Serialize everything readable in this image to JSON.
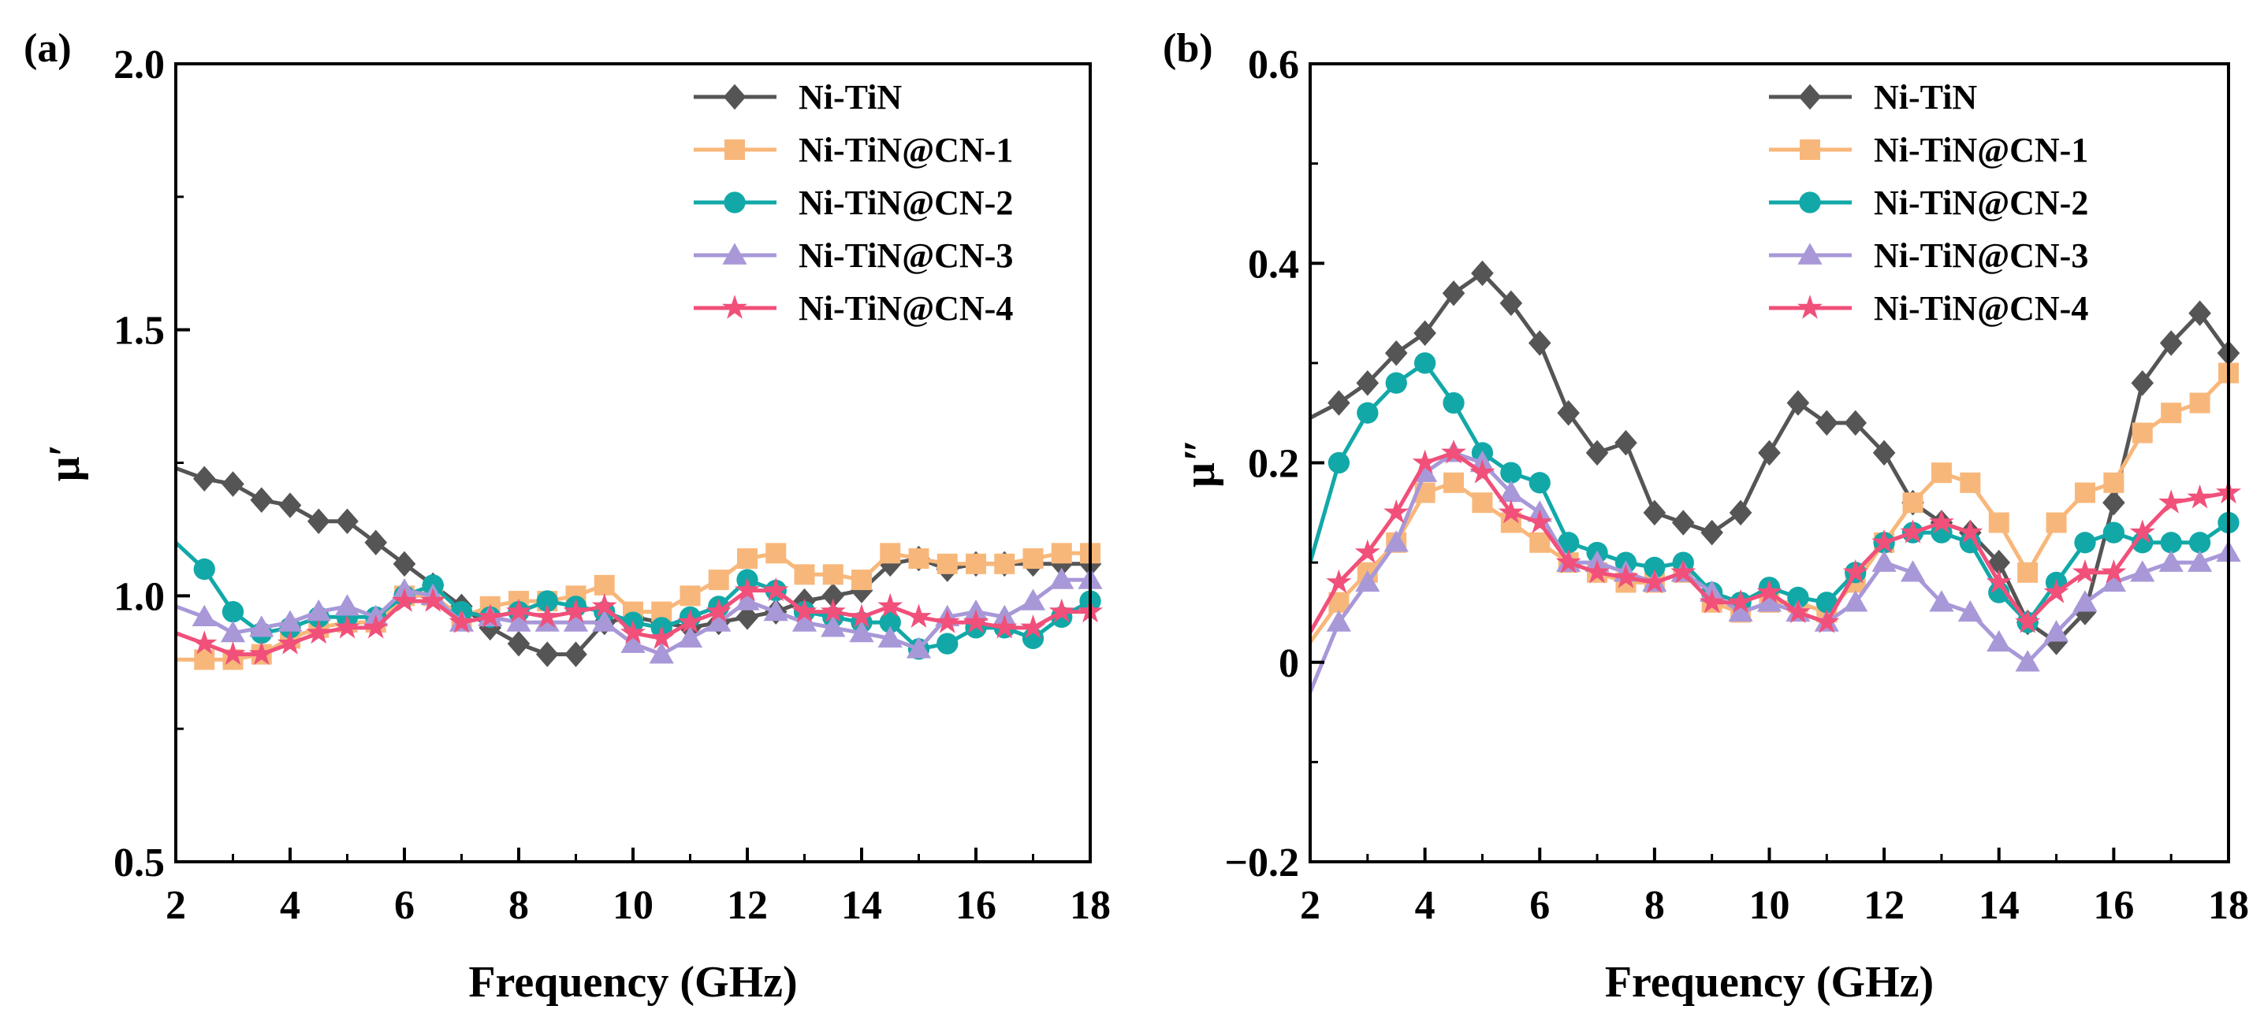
{
  "chart_data": [
    {
      "type": "line",
      "panel_label": "(a)",
      "xlabel": "Frequency (GHz)",
      "ylabel": "μ′",
      "xlim": [
        2,
        18
      ],
      "ylim": [
        0.5,
        2.0
      ],
      "xticks": [
        "2",
        "4",
        "6",
        "8",
        "10",
        "12",
        "14",
        "16",
        "18"
      ],
      "yticks": [
        "0.5",
        "1.0",
        "1.5",
        "2.0"
      ],
      "ytick_values": [
        0.5,
        1.0,
        1.5,
        2.0
      ],
      "legend_position": "top-right",
      "x": [
        2,
        2.5,
        3,
        3.5,
        4,
        4.5,
        5,
        5.5,
        6,
        6.5,
        7,
        7.5,
        8,
        8.5,
        9,
        9.5,
        10,
        10.5,
        11,
        11.5,
        12,
        12.5,
        13,
        13.5,
        14,
        14.5,
        15,
        15.5,
        16,
        16.5,
        17,
        17.5,
        18
      ],
      "series": [
        {
          "name": "Ni-TiN",
          "color": "#555555",
          "marker": "diamond",
          "values": [
            1.24,
            1.22,
            1.21,
            1.18,
            1.17,
            1.14,
            1.14,
            1.1,
            1.06,
            1.02,
            0.98,
            0.94,
            0.91,
            0.89,
            0.89,
            0.95,
            0.96,
            0.95,
            0.94,
            0.95,
            0.96,
            0.97,
            0.99,
            1.0,
            1.01,
            1.06,
            1.07,
            1.05,
            1.06,
            1.06,
            1.06,
            1.06,
            1.06
          ]
        },
        {
          "name": "Ni-TiN@CN-1",
          "color": "#f8b77a",
          "marker": "square",
          "values": [
            0.88,
            0.88,
            0.88,
            0.89,
            0.92,
            0.94,
            0.95,
            0.95,
            1.0,
            1.0,
            0.96,
            0.98,
            0.99,
            0.99,
            1.0,
            1.02,
            0.97,
            0.97,
            1.0,
            1.03,
            1.07,
            1.08,
            1.04,
            1.04,
            1.03,
            1.08,
            1.07,
            1.06,
            1.06,
            1.06,
            1.07,
            1.08,
            1.08
          ]
        },
        {
          "name": "Ni-TiN@CN-2",
          "color": "#12a8a8",
          "marker": "circle",
          "values": [
            1.1,
            1.05,
            0.97,
            0.93,
            0.94,
            0.96,
            0.96,
            0.96,
            1.0,
            1.02,
            0.97,
            0.96,
            0.97,
            0.99,
            0.98,
            0.97,
            0.95,
            0.94,
            0.96,
            0.98,
            1.03,
            1.01,
            0.97,
            0.96,
            0.95,
            0.95,
            0.9,
            0.91,
            0.94,
            0.94,
            0.92,
            0.96,
            0.99
          ]
        },
        {
          "name": "Ni-TiN@CN-3",
          "color": "#a898d8",
          "marker": "triangle",
          "values": [
            0.98,
            0.96,
            0.93,
            0.94,
            0.95,
            0.97,
            0.98,
            0.96,
            1.01,
            1.0,
            0.95,
            0.96,
            0.95,
            0.95,
            0.95,
            0.95,
            0.91,
            0.89,
            0.92,
            0.95,
            0.99,
            0.97,
            0.95,
            0.94,
            0.93,
            0.92,
            0.9,
            0.96,
            0.97,
            0.96,
            0.99,
            1.03,
            1.03
          ]
        },
        {
          "name": "Ni-TiN@CN-4",
          "color": "#f0507a",
          "marker": "star",
          "values": [
            0.93,
            0.91,
            0.89,
            0.89,
            0.91,
            0.93,
            0.94,
            0.94,
            0.99,
            0.99,
            0.95,
            0.96,
            0.97,
            0.96,
            0.97,
            0.98,
            0.93,
            0.92,
            0.95,
            0.97,
            1.01,
            1.01,
            0.97,
            0.97,
            0.96,
            0.98,
            0.96,
            0.95,
            0.95,
            0.94,
            0.94,
            0.97,
            0.97
          ]
        }
      ]
    },
    {
      "type": "line",
      "panel_label": "(b)",
      "xlabel": "Frequency (GHz)",
      "ylabel": "μ″",
      "xlim": [
        2,
        18
      ],
      "ylim": [
        -0.2,
        0.6
      ],
      "xticks": [
        "2",
        "4",
        "6",
        "8",
        "10",
        "12",
        "14",
        "16",
        "18"
      ],
      "yticks": [
        "−0.2",
        "0",
        "0.2",
        "0.4",
        "0.6"
      ],
      "ytick_values": [
        -0.2,
        0,
        0.2,
        0.4,
        0.6
      ],
      "legend_position": "top-right",
      "x": [
        2,
        2.5,
        3,
        3.5,
        4,
        4.5,
        5,
        5.5,
        6,
        6.5,
        7,
        7.5,
        8,
        8.5,
        9,
        9.5,
        10,
        10.5,
        11,
        11.5,
        12,
        12.5,
        13,
        13.5,
        14,
        14.5,
        15,
        15.5,
        16,
        16.5,
        17,
        17.5,
        18
      ],
      "series": [
        {
          "name": "Ni-TiN",
          "color": "#555555",
          "marker": "diamond",
          "values": [
            0.245,
            0.26,
            0.28,
            0.31,
            0.33,
            0.37,
            0.39,
            0.36,
            0.32,
            0.25,
            0.21,
            0.22,
            0.15,
            0.14,
            0.13,
            0.15,
            0.21,
            0.26,
            0.24,
            0.24,
            0.21,
            0.16,
            0.14,
            0.13,
            0.1,
            0.04,
            0.02,
            0.05,
            0.16,
            0.28,
            0.32,
            0.35,
            0.31
          ]
        },
        {
          "name": "Ni-TiN@CN-1",
          "color": "#f8b77a",
          "marker": "square",
          "values": [
            0.02,
            0.06,
            0.09,
            0.12,
            0.17,
            0.18,
            0.16,
            0.14,
            0.12,
            0.1,
            0.09,
            0.08,
            0.08,
            0.09,
            0.06,
            0.05,
            0.06,
            0.06,
            0.05,
            0.08,
            0.12,
            0.16,
            0.19,
            0.18,
            0.14,
            0.09,
            0.14,
            0.17,
            0.18,
            0.23,
            0.25,
            0.26,
            0.29
          ]
        },
        {
          "name": "Ni-TiN@CN-2",
          "color": "#12a8a8",
          "marker": "circle",
          "values": [
            0.1,
            0.2,
            0.25,
            0.28,
            0.3,
            0.26,
            0.21,
            0.19,
            0.18,
            0.12,
            0.11,
            0.1,
            0.095,
            0.1,
            0.07,
            0.06,
            0.075,
            0.065,
            0.06,
            0.09,
            0.12,
            0.13,
            0.13,
            0.12,
            0.07,
            0.04,
            0.08,
            0.12,
            0.13,
            0.12,
            0.12,
            0.12,
            0.14
          ]
        },
        {
          "name": "Ni-TiN@CN-3",
          "color": "#a898d8",
          "marker": "triangle",
          "values": [
            -0.03,
            0.04,
            0.08,
            0.12,
            0.19,
            0.21,
            0.2,
            0.17,
            0.15,
            0.1,
            0.1,
            0.09,
            0.08,
            0.09,
            0.07,
            0.05,
            0.06,
            0.05,
            0.04,
            0.06,
            0.1,
            0.09,
            0.06,
            0.05,
            0.02,
            0.0,
            0.03,
            0.06,
            0.08,
            0.09,
            0.1,
            0.1,
            0.11
          ]
        },
        {
          "name": "Ni-TiN@CN-4",
          "color": "#f0507a",
          "marker": "star",
          "values": [
            0.03,
            0.08,
            0.11,
            0.15,
            0.2,
            0.21,
            0.19,
            0.15,
            0.14,
            0.1,
            0.09,
            0.085,
            0.08,
            0.09,
            0.06,
            0.06,
            0.07,
            0.05,
            0.04,
            0.09,
            0.12,
            0.13,
            0.14,
            0.13,
            0.08,
            0.04,
            0.07,
            0.09,
            0.09,
            0.13,
            0.16,
            0.165,
            0.17
          ]
        }
      ]
    }
  ]
}
